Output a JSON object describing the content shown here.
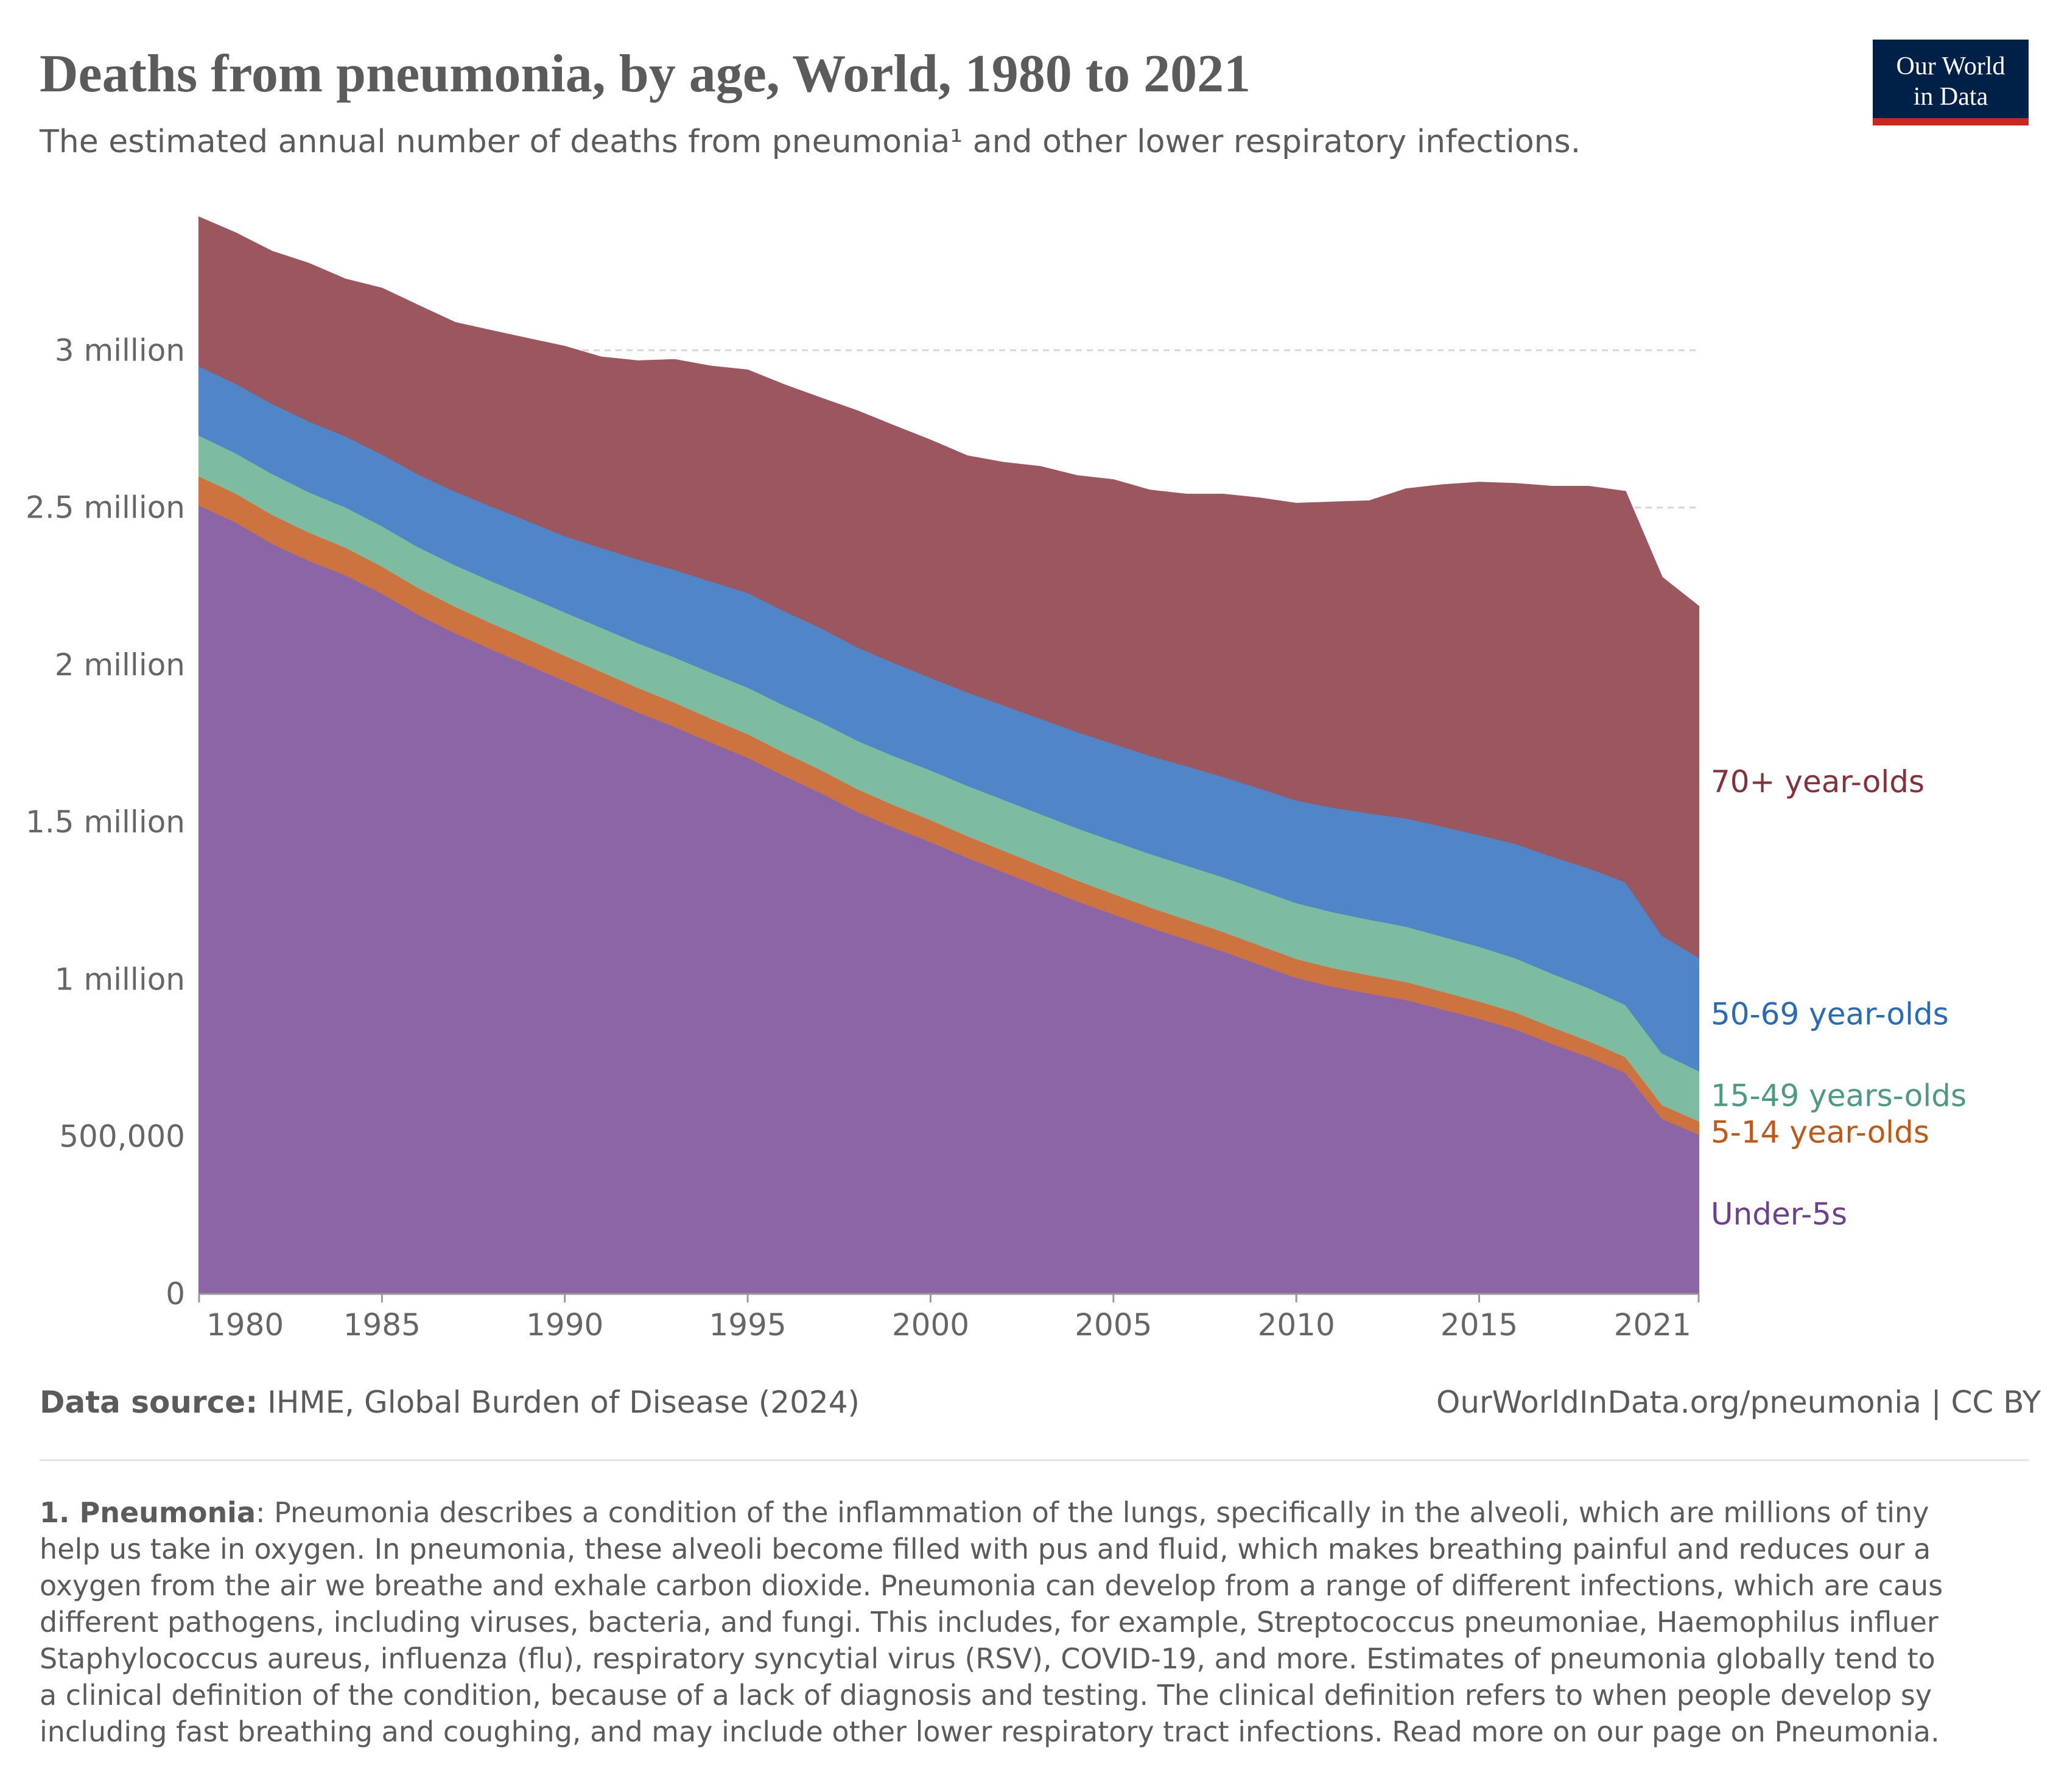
{
  "chart_data": {
    "type": "stacked_area",
    "title": "Deaths from pneumonia, by age, World, 1980 to 2021",
    "subtitle": "The estimated annual number of deaths from pneumonia¹ and other lower respiratory infections.",
    "x": [
      1980,
      1981,
      1982,
      1983,
      1984,
      1985,
      1986,
      1987,
      1988,
      1989,
      1990,
      1991,
      1992,
      1993,
      1994,
      1995,
      1996,
      1997,
      1998,
      1999,
      2000,
      2001,
      2002,
      2003,
      2004,
      2005,
      2006,
      2007,
      2008,
      2009,
      2010,
      2011,
      2012,
      2013,
      2014,
      2015,
      2016,
      2017,
      2018,
      2019,
      2020,
      2021
    ],
    "series": [
      {
        "name": "Under-5s",
        "color": "#8b65a5",
        "label_color": "#6d3e91",
        "values": [
          2508000,
          2454000,
          2386000,
          2332000,
          2286000,
          2228000,
          2160000,
          2102000,
          2050000,
          2000000,
          1950000,
          1900000,
          1850000,
          1804000,
          1754000,
          1706000,
          1648000,
          1594000,
          1534000,
          1484000,
          1438000,
          1388000,
          1342000,
          1296000,
          1250000,
          1208000,
          1166000,
          1128000,
          1090000,
          1048000,
          1006000,
          978000,
          956000,
          936000,
          906000,
          876000,
          842000,
          796000,
          754000,
          704000,
          558000,
          508000
        ]
      },
      {
        "name": "5-14 year-olds",
        "color": "#cc7340",
        "label_color": "#c05917",
        "values": [
          92000,
          92000,
          92000,
          90000,
          88000,
          86000,
          85000,
          84000,
          83000,
          82000,
          80000,
          79000,
          78000,
          77000,
          76000,
          75000,
          74000,
          73000,
          72000,
          71000,
          70000,
          69000,
          68000,
          67000,
          66000,
          65000,
          64000,
          63000,
          62000,
          61000,
          60000,
          59000,
          58000,
          57000,
          56000,
          55000,
          54000,
          53000,
          51000,
          50000,
          44000,
          42000
        ]
      },
      {
        "name": "15-49 years-olds",
        "color": "#7ebca2",
        "label_color": "#4c9a84",
        "values": [
          130000,
          128000,
          130000,
          128000,
          128000,
          128000,
          130000,
          132000,
          134000,
          136000,
          138000,
          140000,
          142000,
          144000,
          146000,
          148000,
          150000,
          152000,
          154000,
          156000,
          158000,
          160000,
          162000,
          164000,
          166000,
          168000,
          170000,
          172000,
          174000,
          176000,
          178000,
          178000,
          177000,
          176000,
          175000,
          174000,
          172000,
          170000,
          168000,
          166000,
          164000,
          160000
        ]
      },
      {
        "name": "50-69 year-olds",
        "color": "#5086c8",
        "label_color": "#286bbb",
        "values": [
          220000,
          221000,
          223000,
          225000,
          226000,
          228000,
          231000,
          234000,
          237000,
          240000,
          242000,
          254000,
          266000,
          278000,
          290000,
          301000,
          300000,
          299000,
          297000,
          296000,
          294000,
          297000,
          300000,
          303000,
          306000,
          309000,
          312000,
          316000,
          319000,
          323000,
          326000,
          332000,
          338000,
          344000,
          350000,
          355000,
          364000,
          372000,
          381000,
          390000,
          374000,
          360000
        ]
      },
      {
        "name": "70+ year-olds",
        "color": "#9c565e",
        "label_color": "#883039",
        "values": [
          473000,
          478000,
          483000,
          501000,
          498000,
          527000,
          536000,
          536000,
          558000,
          579000,
          602000,
          605000,
          630000,
          667000,
          683000,
          707000,
          718000,
          730000,
          750000,
          753000,
          754000,
          750000,
          771000,
          800000,
          813000,
          838000,
          843000,
          863000,
          897000,
          922000,
          943000,
          970000,
          992000,
          1046000,
          1085000,
          1120000,
          1144000,
          1176000,
          1213000,
          1241000,
          1138000,
          1116000
        ]
      }
    ],
    "xlim": [
      1980,
      2021
    ],
    "xticks": [
      1980,
      1985,
      1990,
      1995,
      2000,
      2005,
      2010,
      2015,
      2021
    ],
    "ylim": [
      0,
      3500000
    ],
    "yticks": [
      0,
      {
        "value": 500000,
        "label": "500,000"
      },
      {
        "value": 1000000,
        "label": "1 million"
      },
      {
        "value": 1500000,
        "label": "1.5 million"
      },
      {
        "value": 2000000,
        "label": "2 million"
      },
      {
        "value": 2500000,
        "label": "2.5 million"
      },
      {
        "value": 3000000,
        "label": "3 million"
      }
    ],
    "grid": true
  },
  "logo": [
    "Our World",
    "in Data"
  ],
  "footer": {
    "source_label": "Data source:",
    "source": "IHME, Global Burden of Disease (2024)",
    "url": "OurWorldInData.org/pneumonia | CC BY"
  },
  "footnote": {
    "term": "1. Pneumonia",
    "lines": [
      ": Pneumonia describes a condition of the inflammation of the lungs, specifically in the alveoli, which are millions of tiny",
      "help us take in oxygen. In pneumonia, these alveoli become filled with pus and fluid, which makes breathing painful and reduces our a",
      "oxygen from the air we breathe and exhale carbon dioxide. Pneumonia can develop from a range of different infections, which are caus",
      "different pathogens, including viruses, bacteria, and fungi. This includes, for example, Streptococcus pneumoniae, Haemophilus influer",
      "Staphylococcus aureus, influenza (flu), respiratory syncytial virus (RSV), COVID-19, and more. Estimates of pneumonia globally tend to",
      "a clinical definition of the condition, because of a lack of diagnosis and testing. The clinical definition refers to when people develop sy",
      "including fast breathing and coughing, and may include other lower respiratory tract infections. Read more on our page on Pneumonia."
    ]
  }
}
